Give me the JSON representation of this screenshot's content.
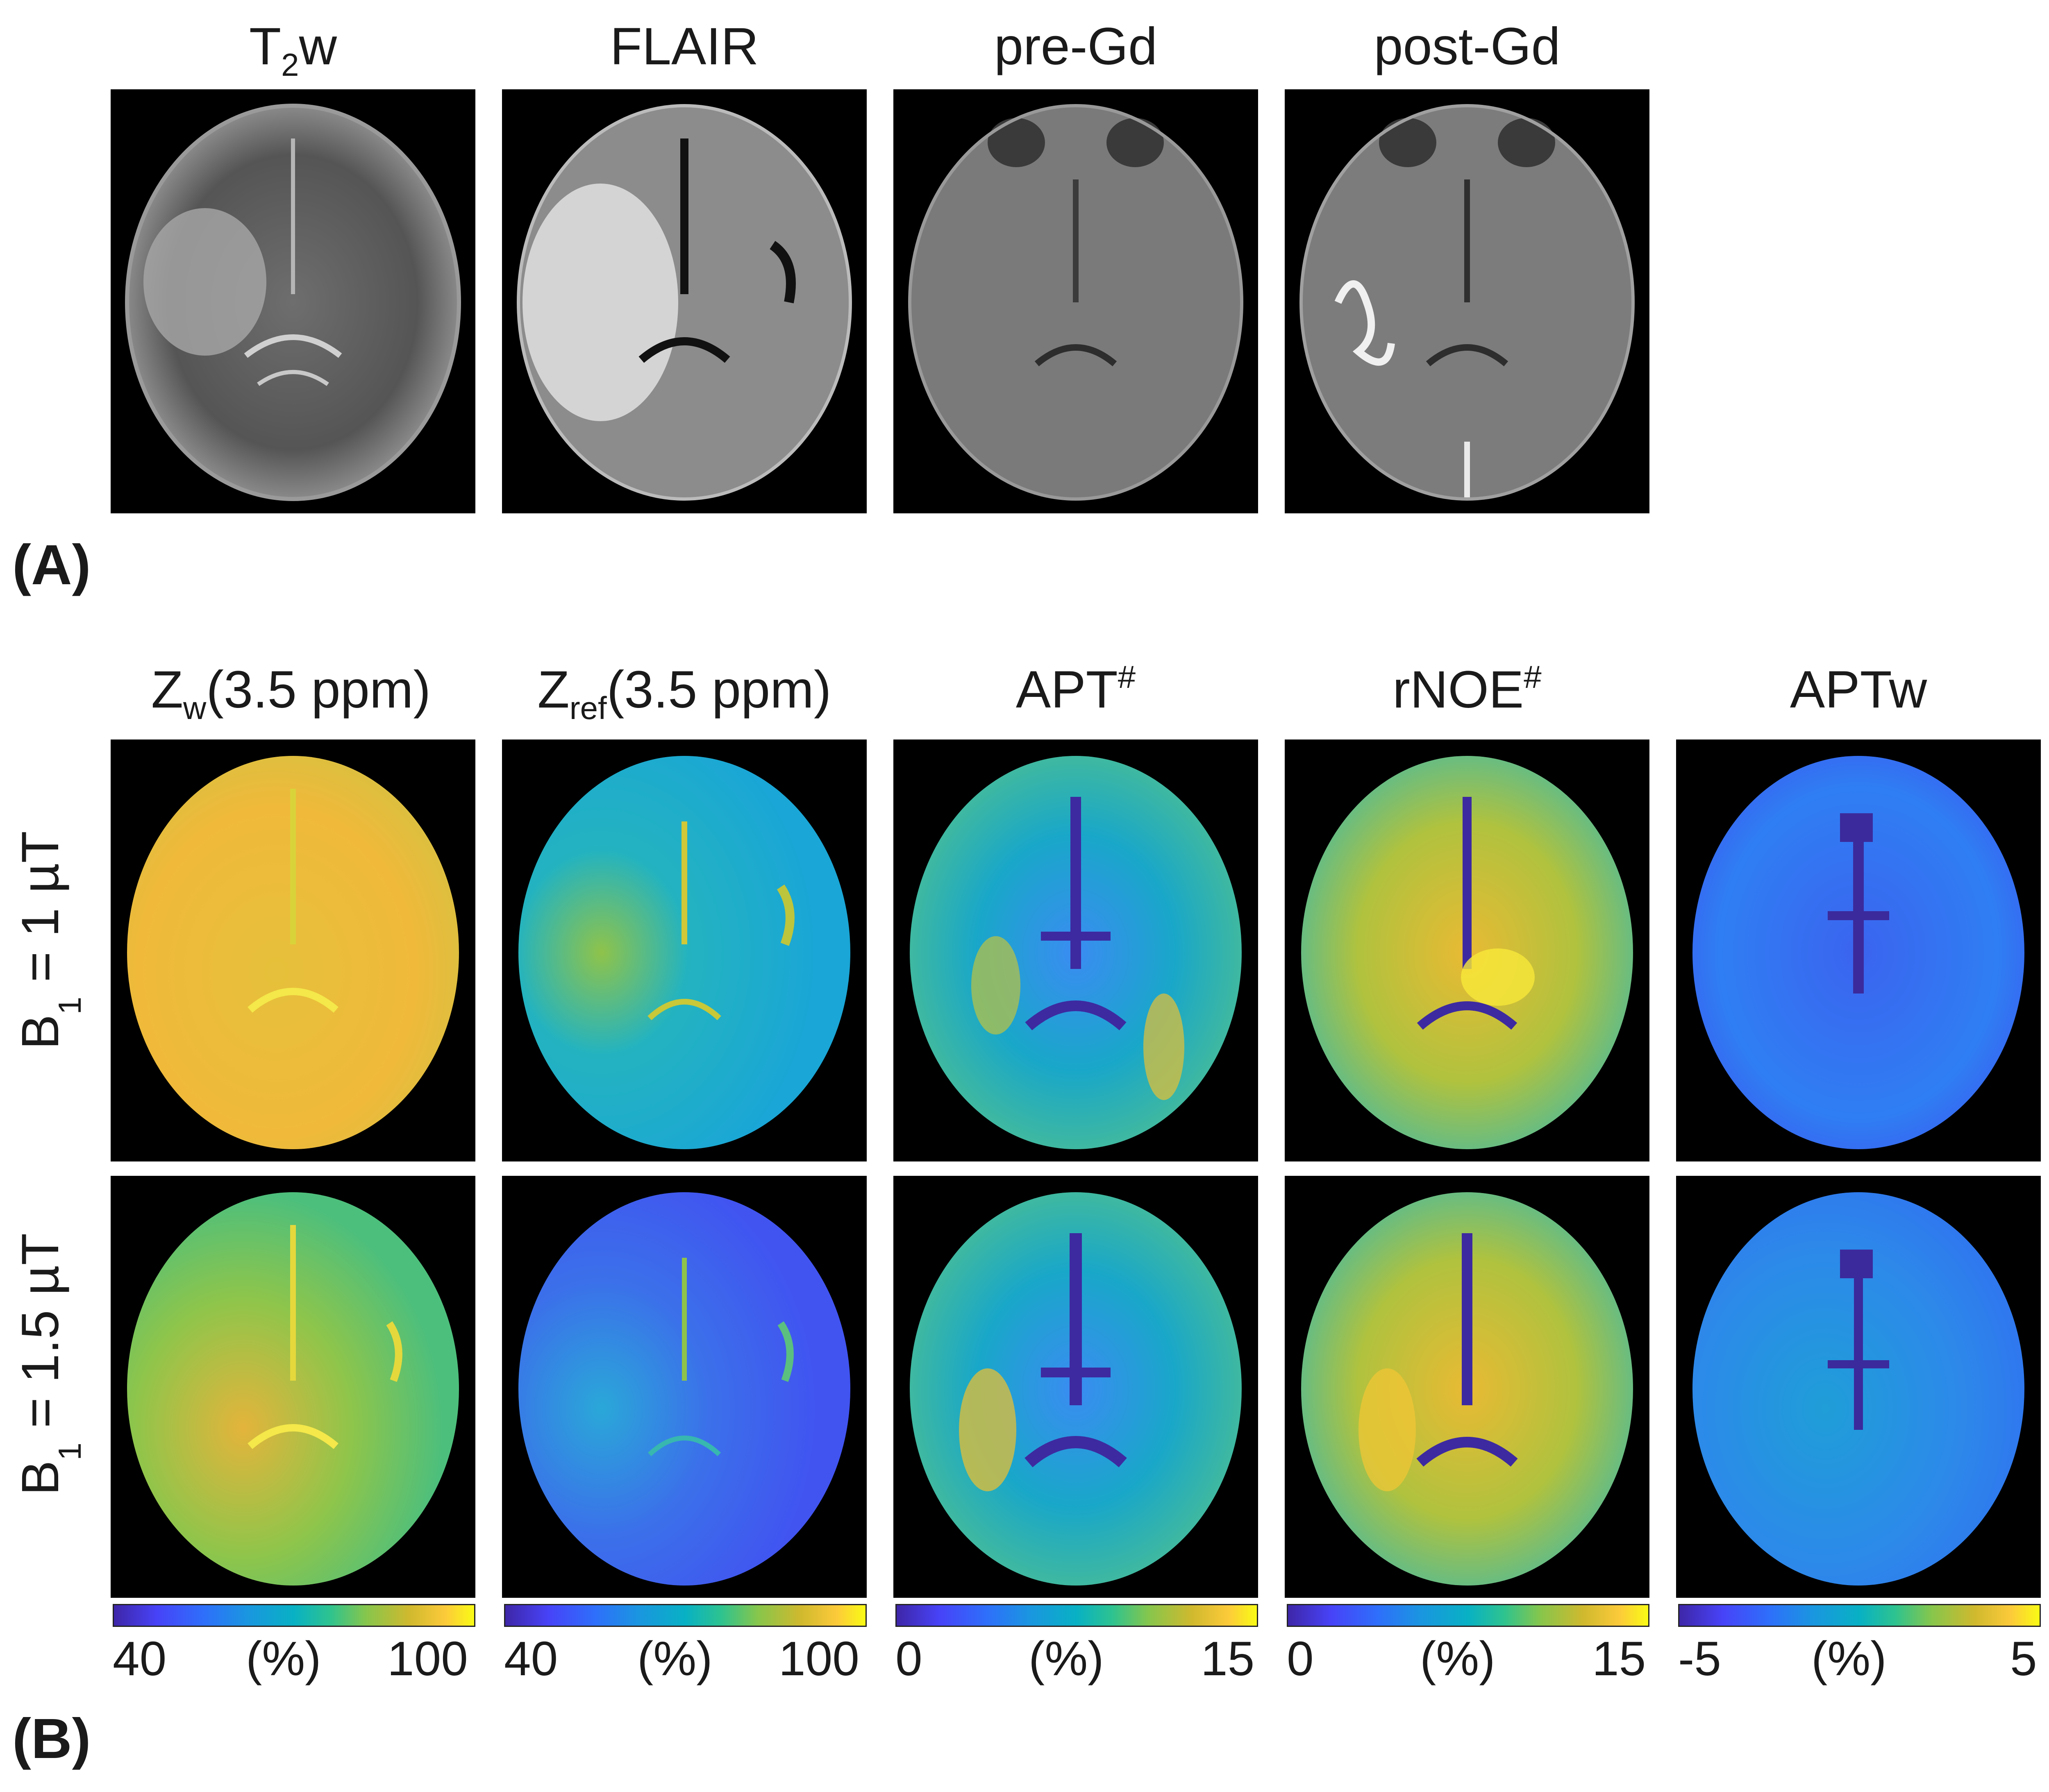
{
  "panel_a": {
    "label": "(A)",
    "columns": [
      {
        "main": "T",
        "sub": "2",
        "suffix": "w"
      },
      {
        "main": "FLAIR"
      },
      {
        "main": "pre-Gd"
      },
      {
        "main": "post-Gd"
      }
    ]
  },
  "panel_b": {
    "label": "(B)",
    "columns": [
      {
        "main": "Z",
        "sub": "w",
        "suffix": "(3.5 ppm)"
      },
      {
        "main": "Z",
        "sub": "ref",
        "suffix": "(3.5 ppm)"
      },
      {
        "main": "APT",
        "sup": "#"
      },
      {
        "main": "rNOE",
        "sup": "#"
      },
      {
        "main": "APTw"
      }
    ],
    "rows": [
      {
        "pre": "B",
        "sub": "1",
        "post": " = 1 µT"
      },
      {
        "pre": "B",
        "sub": "1",
        "post": " = 1.5 µT"
      }
    ],
    "colorbars": [
      {
        "min": "40",
        "unit": "(%)",
        "max": "100"
      },
      {
        "min": "40",
        "unit": "(%)",
        "max": "100"
      },
      {
        "min": "0",
        "unit": "(%)",
        "max": "15"
      },
      {
        "min": "0",
        "unit": "(%)",
        "max": "15"
      },
      {
        "min": "-5",
        "unit": "(%)",
        "max": "5"
      }
    ]
  },
  "colors": {
    "parula_low": "#3e26a8",
    "parula_mid": "#08b1c4",
    "parula_high": "#f9fb15",
    "background": "#000000"
  }
}
